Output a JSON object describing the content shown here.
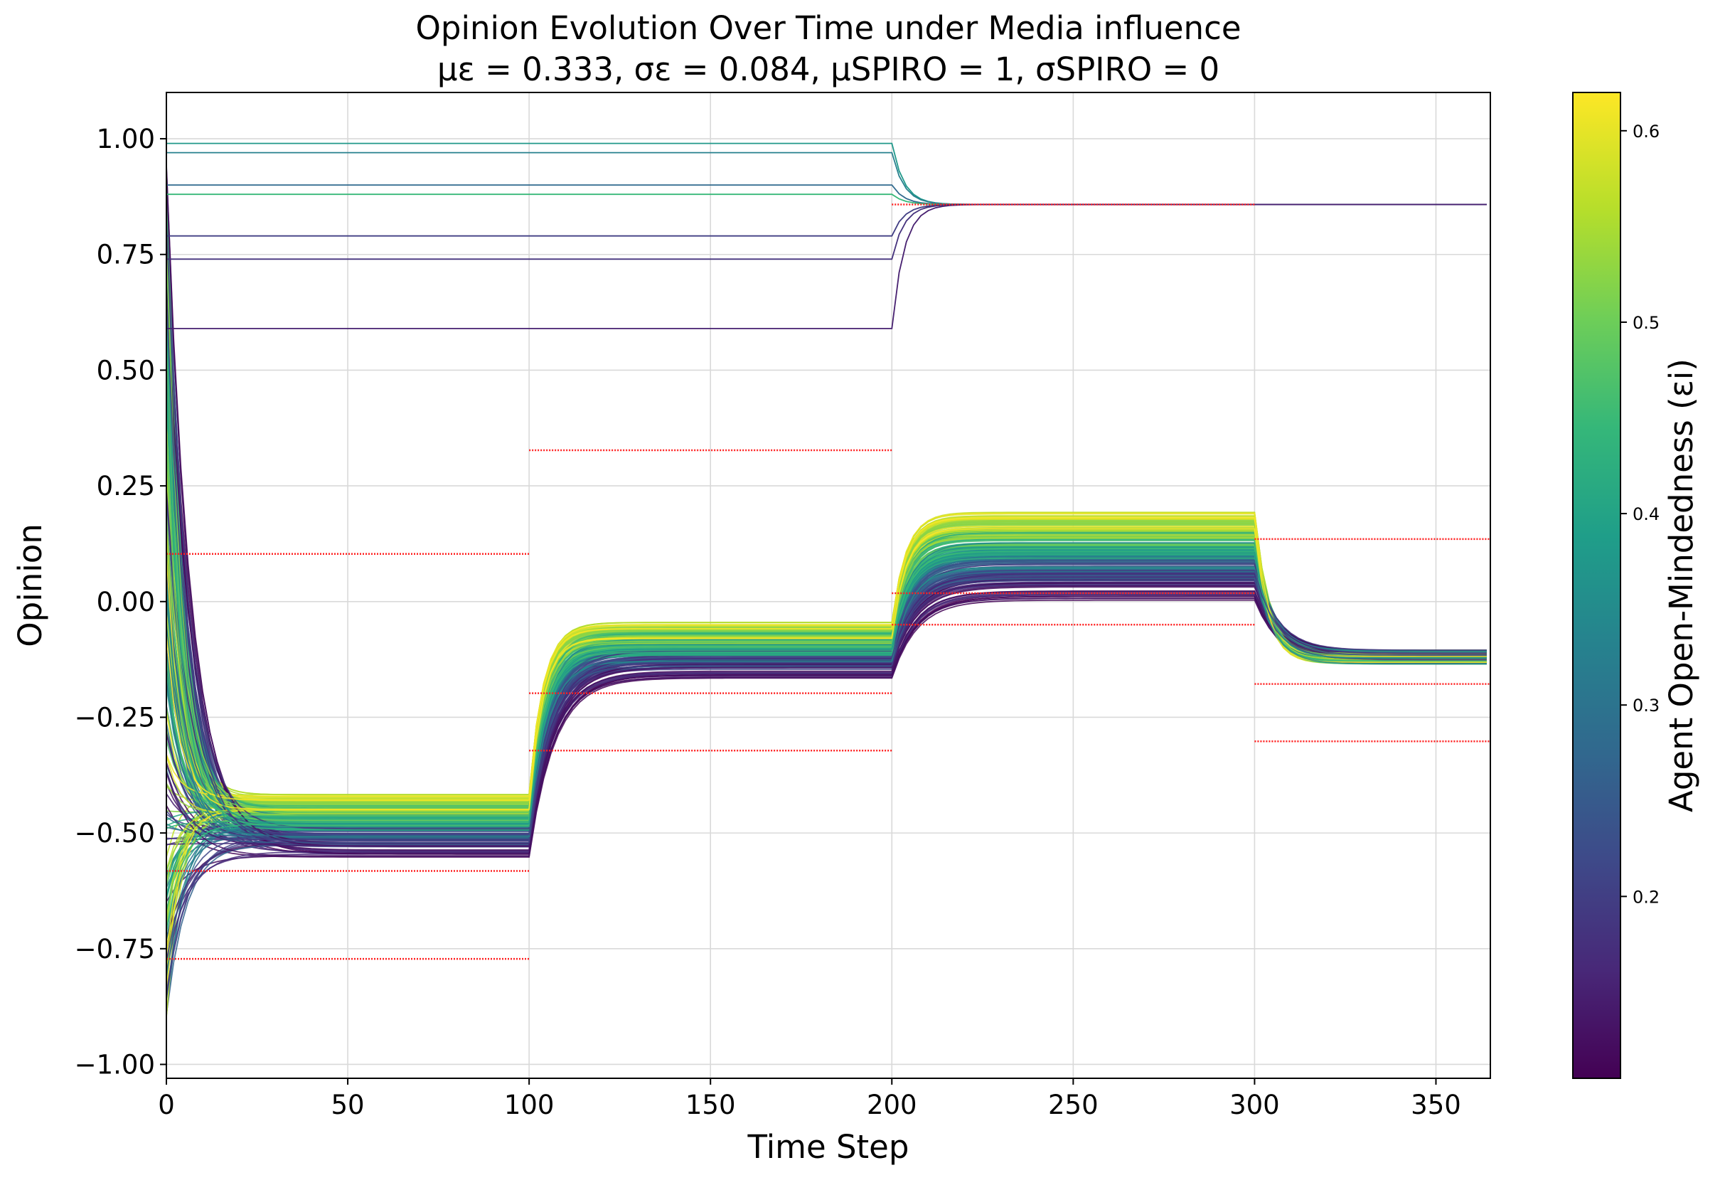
{
  "chart_data": {
    "type": "line",
    "title": "Opinion Evolution Over Time under Media influence",
    "subtitle": "με = 0.333, σε = 0.084, μSPIRO = 1, σSPIRO = 0",
    "xlabel": "Time Step",
    "ylabel": "Opinion",
    "xlim": [
      0,
      365
    ],
    "ylim": [
      -1.03,
      1.1
    ],
    "x_ticks": [
      0,
      50,
      100,
      150,
      200,
      250,
      300,
      350
    ],
    "x_tick_labels": [
      "0",
      "50",
      "100",
      "150",
      "200",
      "250",
      "300",
      "350"
    ],
    "y_ticks": [
      1.0,
      0.75,
      0.5,
      0.25,
      0.0,
      -0.25,
      -0.5,
      -0.75,
      -1.0
    ],
    "y_tick_labels": [
      "1.00",
      "0.75",
      "0.50",
      "0.25",
      "0.00",
      "−0.25",
      "−0.50",
      "−0.75",
      "−1.00"
    ],
    "grid": true,
    "colorbar": {
      "label": "Agent Open-Mindedness (εi)",
      "range": [
        0.105,
        0.62
      ],
      "ticks": [
        0.2,
        0.3,
        0.4,
        0.5,
        0.6
      ],
      "tick_labels": [
        "0.2",
        "0.3",
        "0.4",
        "0.5",
        "0.6"
      ],
      "colormap": "viridis"
    },
    "media_levels": [
      {
        "start": 0,
        "end": 100,
        "values": [
          0.103,
          -0.582,
          -0.772
        ]
      },
      {
        "start": 100,
        "end": 200,
        "values": [
          0.327,
          -0.198,
          -0.322
        ]
      },
      {
        "start": 200,
        "end": 300,
        "values": [
          0.858,
          0.018,
          -0.05
        ]
      },
      {
        "start": 300,
        "end": 365,
        "values": [
          0.135,
          -0.178,
          -0.302
        ]
      }
    ],
    "media_color": "#ff2020",
    "agent_series_note_count": 0
  },
  "colors": {
    "grid": "#d9d9d9",
    "axis": "#000000",
    "viridis": [
      "#440154",
      "#482878",
      "#3e4989",
      "#31688e",
      "#26828e",
      "#1f9e89",
      "#35b779",
      "#6ece58",
      "#b5de2b",
      "#fde725"
    ]
  }
}
